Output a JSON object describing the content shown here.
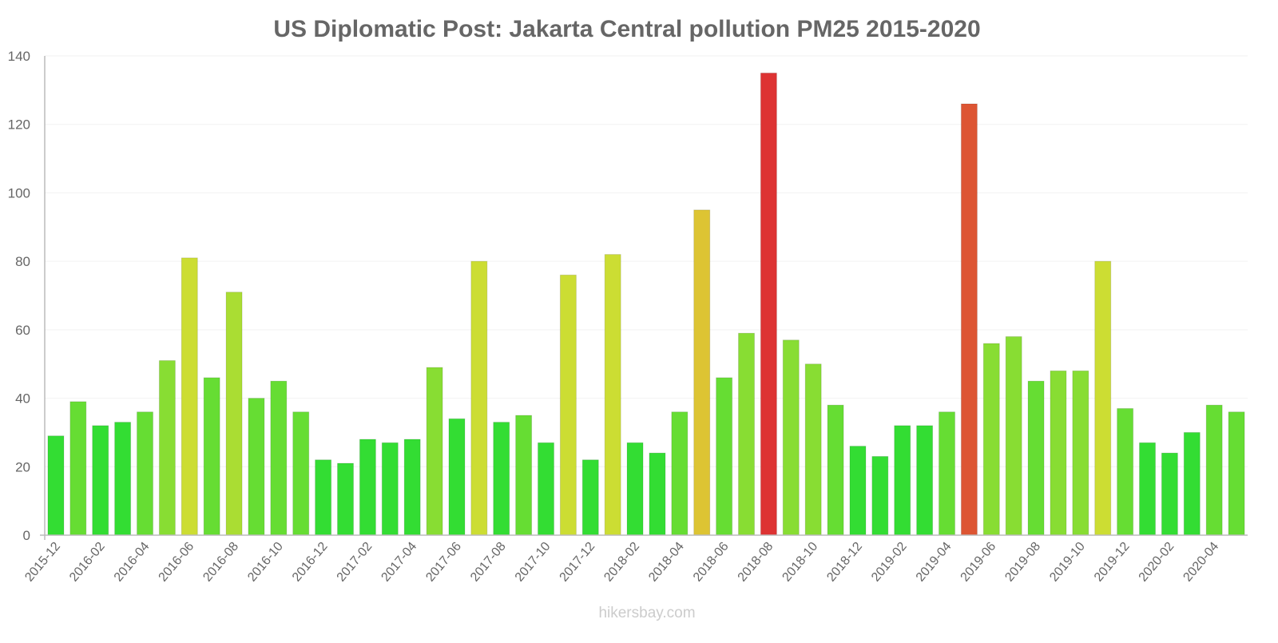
{
  "chart_data": {
    "type": "bar",
    "title": "US Diplomatic Post: Jakarta Central pollution PM25 2015-2020",
    "xlabel": "",
    "ylabel": "",
    "ylim": [
      0,
      140
    ],
    "yticks": [
      0,
      20,
      40,
      60,
      80,
      100,
      120,
      140
    ],
    "grid": true,
    "categories": [
      "2015-12",
      "2016-01",
      "2016-02",
      "2016-03",
      "2016-04",
      "2016-05",
      "2016-06",
      "2016-07",
      "2016-08",
      "2016-09",
      "2016-10",
      "2016-11",
      "2016-12",
      "2017-01",
      "2017-02",
      "2017-03",
      "2017-04",
      "2017-05",
      "2017-06",
      "2017-07",
      "2017-08",
      "2017-09",
      "2017-10",
      "2017-11",
      "2017-12",
      "2018-01",
      "2018-02",
      "2018-03",
      "2018-04",
      "2018-05",
      "2018-06",
      "2018-07",
      "2018-08",
      "2018-09",
      "2018-10",
      "2018-11",
      "2018-12",
      "2019-01",
      "2019-02",
      "2019-03",
      "2019-04",
      "2019-05",
      "2019-06",
      "2019-07",
      "2019-08",
      "2019-09",
      "2019-10",
      "2019-11",
      "2019-12",
      "2020-01",
      "2020-02",
      "2020-03",
      "2020-04",
      "2020-05"
    ],
    "values": [
      29,
      39,
      32,
      33,
      36,
      51,
      81,
      46,
      71,
      40,
      45,
      36,
      22,
      21,
      28,
      27,
      28,
      49,
      34,
      80,
      33,
      35,
      27,
      76,
      22,
      82,
      27,
      24,
      36,
      95,
      46,
      59,
      135,
      57,
      50,
      38,
      26,
      23,
      32,
      32,
      36,
      126,
      56,
      58,
      45,
      48,
      48,
      80,
      37,
      27,
      24,
      30,
      38,
      36
    ],
    "colors": {
      "low": "#33dd33",
      "moderate": "#66dd33",
      "medium": "#88dd33",
      "elevated": "#aadd33",
      "high": "#ccdd33",
      "veryhigh": "#ddc433",
      "severe": "#dd5533",
      "extreme": "#dd3333"
    }
  },
  "footer": {
    "watermark": "hikersbay.com"
  }
}
